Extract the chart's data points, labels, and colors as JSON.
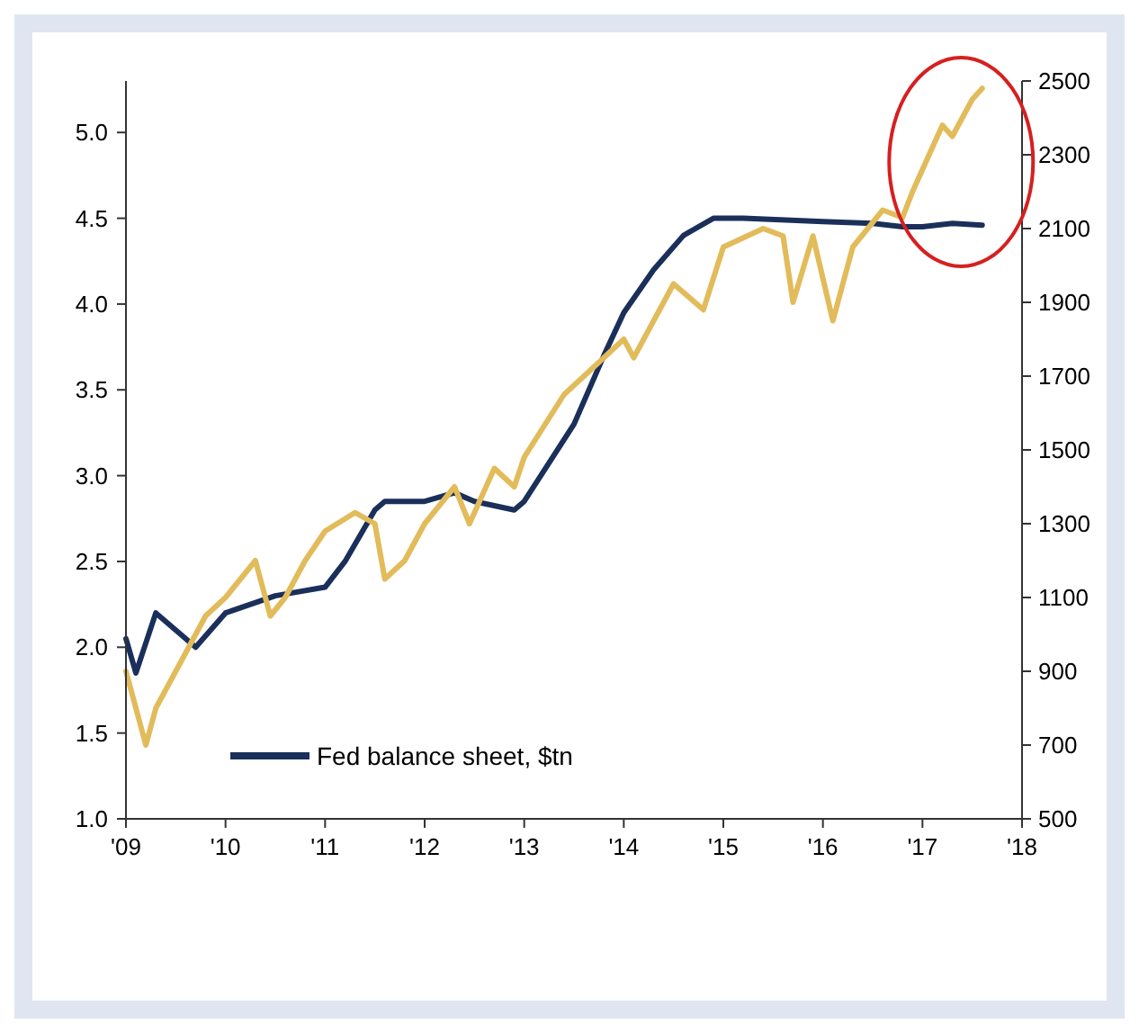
{
  "chart_data": {
    "type": "line",
    "xlim": [
      2009,
      2018
    ],
    "xticks": [
      {
        "value": 2009,
        "label": "'09"
      },
      {
        "value": 2010,
        "label": "'10"
      },
      {
        "value": 2011,
        "label": "'11"
      },
      {
        "value": 2012,
        "label": "'12"
      },
      {
        "value": 2013,
        "label": "'13"
      },
      {
        "value": 2014,
        "label": "'14"
      },
      {
        "value": 2015,
        "label": "'15"
      },
      {
        "value": 2016,
        "label": "'16"
      },
      {
        "value": 2017,
        "label": "'17"
      },
      {
        "value": 2018,
        "label": "'18"
      }
    ],
    "ylim": [
      1.0,
      5.3
    ],
    "yticks": [
      {
        "value": 1.0,
        "label": "1.0"
      },
      1.5,
      {
        "value": 2.0,
        "label": "2.0"
      },
      2.5,
      {
        "value": 3.0,
        "label": "3.0"
      },
      3.5,
      {
        "value": 4.0,
        "label": "4.0"
      },
      4.5,
      {
        "value": 5.0,
        "label": "5.0"
      }
    ],
    "y2lim": [
      500,
      2500
    ],
    "y2ticks": [
      500,
      700,
      900,
      1100,
      1300,
      1500,
      1700,
      1900,
      2100,
      2300,
      2500
    ],
    "legend": "bottom",
    "grid": false,
    "series": [
      {
        "name": "Fed balance sheet, $tn",
        "color": "#1a2f5a",
        "x": [
          2009.0,
          2009.1,
          2009.3,
          2009.5,
          2009.7,
          2010.0,
          2010.5,
          2011.0,
          2011.2,
          2011.5,
          2011.6,
          2012.0,
          2012.3,
          2012.5,
          2012.9,
          2013.0,
          2013.5,
          2013.8,
          2014.0,
          2014.3,
          2014.6,
          2014.9,
          2015.2,
          2016.0,
          2016.5,
          2016.8,
          2017.0,
          2017.3,
          2017.6
        ],
        "values": [
          2.05,
          1.85,
          2.2,
          2.1,
          2.0,
          2.2,
          2.3,
          2.35,
          2.5,
          2.8,
          2.85,
          2.85,
          2.9,
          2.85,
          2.8,
          2.85,
          3.3,
          3.7,
          3.95,
          4.2,
          4.4,
          4.5,
          4.5,
          4.48,
          4.47,
          4.45,
          4.45,
          4.47,
          4.46
        ]
      },
      {
        "axis": "y2",
        "color": "#e2bb5a",
        "x": [
          2009.0,
          2009.2,
          2009.3,
          2009.5,
          2009.8,
          2010.0,
          2010.3,
          2010.45,
          2010.6,
          2010.8,
          2011.0,
          2011.3,
          2011.5,
          2011.6,
          2011.8,
          2012.0,
          2012.3,
          2012.45,
          2012.7,
          2012.9,
          2013.0,
          2013.4,
          2013.6,
          2013.8,
          2014.0,
          2014.1,
          2014.5,
          2014.8,
          2015.0,
          2015.4,
          2015.6,
          2015.7,
          2015.9,
          2016.1,
          2016.3,
          2016.6,
          2016.8,
          2016.9,
          2017.2,
          2017.3,
          2017.5,
          2017.6
        ],
        "values": [
          900,
          700,
          800,
          900,
          1050,
          1100,
          1200,
          1050,
          1100,
          1200,
          1280,
          1330,
          1300,
          1150,
          1200,
          1300,
          1400,
          1300,
          1450,
          1400,
          1480,
          1650,
          1700,
          1750,
          1800,
          1750,
          1950,
          1880,
          2050,
          2100,
          2080,
          1900,
          2080,
          1850,
          2050,
          2150,
          2130,
          2200,
          2380,
          2350,
          2450,
          2480
        ]
      }
    ]
  }
}
